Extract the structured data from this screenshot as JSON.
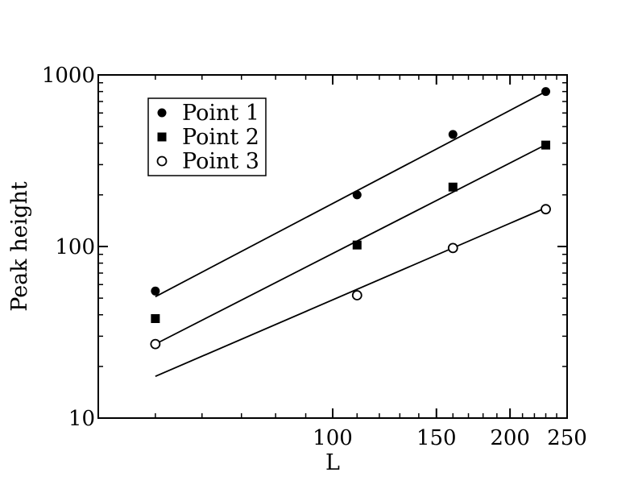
{
  "chart_data": {
    "type": "scatter",
    "xlabel": "L",
    "ylabel": "Peak height",
    "x_scale": "log",
    "y_scale": "log",
    "xlim": [
      40,
      250
    ],
    "ylim": [
      10,
      1000
    ],
    "x_ticks": [
      {
        "value": 100,
        "label": "100"
      },
      {
        "value": 150,
        "label": "150"
      },
      {
        "value": 200,
        "label": "200"
      },
      {
        "value": 250,
        "label": "250"
      }
    ],
    "y_ticks": [
      {
        "value": 10,
        "label": "10"
      },
      {
        "value": 100,
        "label": "100"
      },
      {
        "value": 1000,
        "label": "1000"
      }
    ],
    "grid": false,
    "legend_position": "top-left",
    "series": [
      {
        "name": "Point 1",
        "marker": "filled-circle",
        "points": [
          [
            50,
            55
          ],
          [
            110,
            200
          ],
          [
            160,
            450
          ],
          [
            230,
            800
          ]
        ],
        "fit": [
          [
            50,
            51
          ],
          [
            230,
            800
          ]
        ]
      },
      {
        "name": "Point 2",
        "marker": "filled-square",
        "points": [
          [
            50,
            38
          ],
          [
            110,
            102
          ],
          [
            160,
            222
          ],
          [
            230,
            390
          ]
        ],
        "fit": [
          [
            50,
            27
          ],
          [
            230,
            392
          ]
        ]
      },
      {
        "name": "Point 3",
        "marker": "open-circle",
        "points": [
          [
            50,
            27
          ],
          [
            110,
            52
          ],
          [
            160,
            98
          ],
          [
            230,
            165
          ]
        ],
        "fit": [
          [
            50,
            17.5
          ],
          [
            230,
            168
          ]
        ]
      }
    ]
  }
}
